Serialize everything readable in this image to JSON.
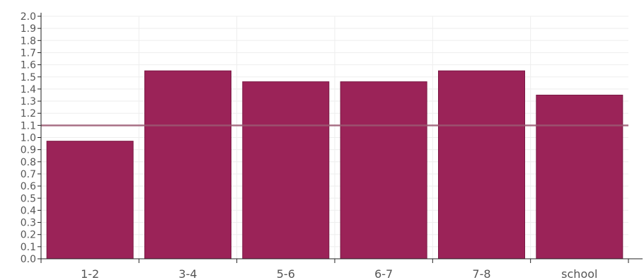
{
  "chart_data": {
    "type": "bar",
    "categories": [
      "1-2",
      "3-4",
      "5-6",
      "6-7",
      "7-8",
      "school"
    ],
    "values": [
      0.97,
      1.55,
      1.46,
      1.46,
      1.55,
      1.35
    ],
    "reference_line": 1.1,
    "ylim": [
      0,
      2.0
    ],
    "y_ticks": [
      "0.0",
      "0.1",
      "0.2",
      "0.3",
      "0.4",
      "0.5",
      "0.6",
      "0.7",
      "0.8",
      "0.9",
      "1.0",
      "1.1",
      "1.2",
      "1.3",
      "1.4",
      "1.5",
      "1.6",
      "1.7",
      "1.8",
      "1.9",
      "2.0"
    ],
    "grid": true,
    "legend": "none",
    "title": "",
    "xlabel": "",
    "ylabel": "",
    "colors": {
      "bar": "#9b2358",
      "bar_stroke": "#7a1844",
      "reference_line": "#9b5a73",
      "grid": "#eeeeee",
      "axis": "#222222"
    }
  }
}
